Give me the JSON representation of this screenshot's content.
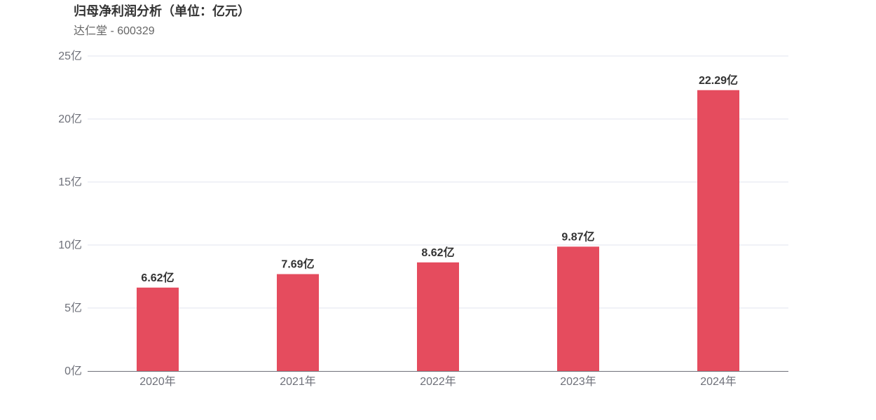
{
  "chart_data": {
    "type": "bar",
    "title": "归母净利润分析（单位：亿元）",
    "subtitle": "达仁堂 - 600329",
    "categories": [
      "2020年",
      "2021年",
      "2022年",
      "2023年",
      "2024年"
    ],
    "values": [
      6.62,
      7.69,
      8.62,
      9.87,
      22.29
    ],
    "data_labels": [
      "6.62亿",
      "7.69亿",
      "8.62亿",
      "9.87亿",
      "22.29亿"
    ],
    "yticks": [
      0,
      5,
      10,
      15,
      20,
      25
    ],
    "ytick_labels": [
      "0亿",
      "5亿",
      "10亿",
      "15亿",
      "20亿",
      "25亿"
    ],
    "ylim": [
      0,
      25
    ],
    "grid": true,
    "bar_color": "#e54c5e"
  }
}
